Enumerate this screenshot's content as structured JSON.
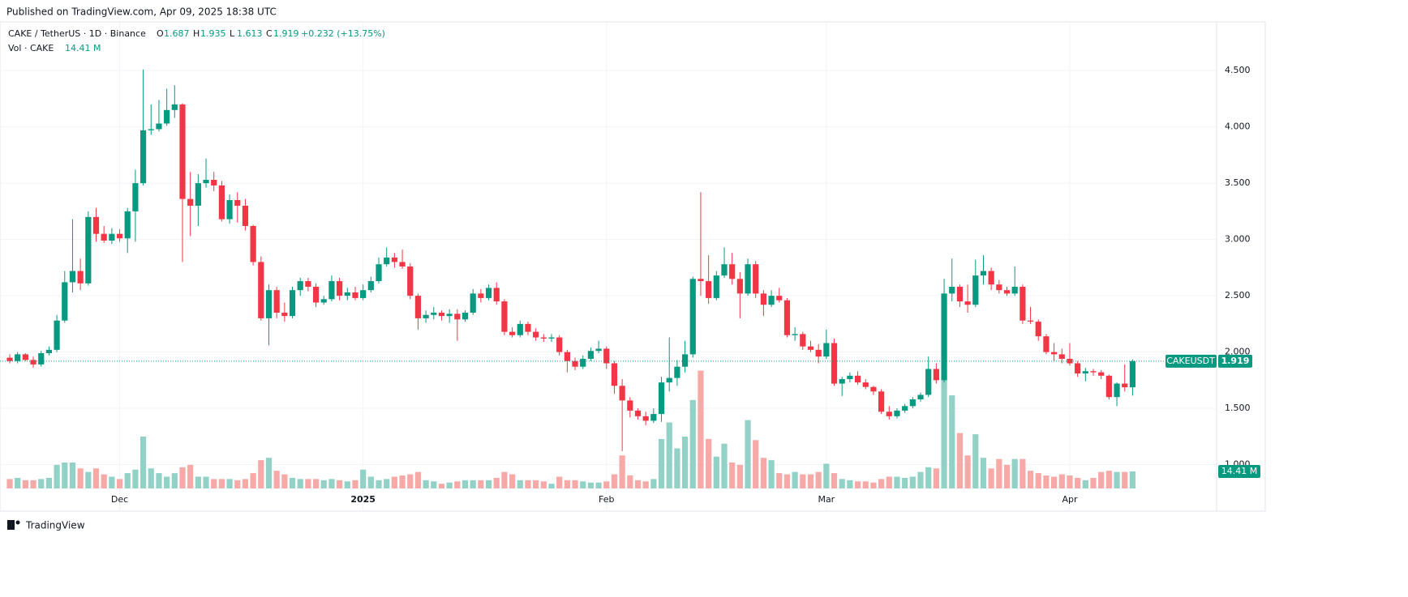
{
  "published": "Published on TradingView.com, Apr 09, 2025 18:38 UTC",
  "footer": "TradingView",
  "chart_data": {
    "type": "candlestick",
    "title": "CAKE / TetherUS · 1D · Binance",
    "ohlc_labels": [
      "O",
      "H",
      "L",
      "C"
    ],
    "change": "+0.232 (+13.75%)",
    "volume_title": "Vol · CAKE",
    "volume_value_label": "14.41 M",
    "symbol_label": "CAKEUSDT",
    "up_color": "#089981",
    "down_color": "#f23645",
    "up_volume_color": "#92d2c6",
    "down_volume_color": "#f7a9a7",
    "grid": true,
    "xlim": [
      -1.24,
      153.7
    ],
    "xticks": [
      {
        "value": 14,
        "label": "Dec"
      },
      {
        "value": 45,
        "label": "2025"
      },
      {
        "value": 76,
        "label": "Feb"
      },
      {
        "value": 104,
        "label": "Mar"
      },
      {
        "value": 135,
        "label": "Apr"
      }
    ],
    "ylim": [
      0.587,
      4.933
    ],
    "yticks": [
      {
        "value": 1.0,
        "label": "1.000"
      },
      {
        "value": 1.5,
        "label": "1.500"
      },
      {
        "value": 2.0,
        "label": "2.000"
      },
      {
        "value": 2.5,
        "label": "2.500"
      },
      {
        "value": 3.0,
        "label": "3.000"
      },
      {
        "value": 3.5,
        "label": "3.500"
      },
      {
        "value": 4.0,
        "label": "4.000"
      },
      {
        "value": 4.5,
        "label": "4.500"
      }
    ],
    "y2lim": [
      0,
      200
    ],
    "ohlc": [
      [
        1.95,
        1.98,
        1.9,
        1.92
      ],
      [
        1.92,
        2.0,
        1.9,
        1.98
      ],
      [
        1.98,
        1.99,
        1.92,
        1.93
      ],
      [
        1.93,
        1.96,
        1.86,
        1.89
      ],
      [
        1.89,
        2.01,
        1.87,
        1.99
      ],
      [
        1.99,
        2.05,
        1.97,
        2.02
      ],
      [
        2.02,
        2.33,
        2.0,
        2.28
      ],
      [
        2.28,
        2.72,
        2.26,
        2.62
      ],
      [
        2.62,
        3.18,
        2.53,
        2.72
      ],
      [
        2.72,
        2.83,
        2.55,
        2.61
      ],
      [
        2.61,
        3.25,
        2.59,
        3.2
      ],
      [
        3.2,
        3.28,
        2.98,
        3.05
      ],
      [
        3.05,
        3.12,
        2.97,
        2.99
      ],
      [
        2.99,
        3.1,
        2.96,
        3.05
      ],
      [
        3.05,
        3.09,
        2.98,
        3.01
      ],
      [
        3.01,
        3.28,
        2.88,
        3.25
      ],
      [
        3.25,
        3.62,
        2.98,
        3.5
      ],
      [
        3.5,
        4.51,
        3.48,
        3.97
      ],
      [
        3.97,
        4.2,
        3.93,
        3.98
      ],
      [
        3.98,
        4.24,
        3.96,
        4.03
      ],
      [
        4.03,
        4.34,
        4.01,
        4.15
      ],
      [
        4.15,
        4.37,
        4.08,
        4.2
      ],
      [
        4.2,
        4.21,
        2.8,
        3.36
      ],
      [
        3.36,
        3.6,
        3.03,
        3.3
      ],
      [
        3.3,
        3.58,
        3.12,
        3.5
      ],
      [
        3.5,
        3.72,
        3.46,
        3.53
      ],
      [
        3.53,
        3.6,
        3.43,
        3.48
      ],
      [
        3.48,
        3.52,
        3.16,
        3.18
      ],
      [
        3.18,
        3.4,
        3.14,
        3.35
      ],
      [
        3.35,
        3.42,
        3.15,
        3.3
      ],
      [
        3.3,
        3.36,
        3.08,
        3.12
      ],
      [
        3.12,
        3.13,
        2.77,
        2.8
      ],
      [
        2.8,
        2.85,
        2.28,
        2.3
      ],
      [
        2.3,
        2.6,
        2.06,
        2.55
      ],
      [
        2.55,
        2.58,
        2.3,
        2.35
      ],
      [
        2.35,
        2.44,
        2.27,
        2.32
      ],
      [
        2.32,
        2.58,
        2.3,
        2.55
      ],
      [
        2.55,
        2.66,
        2.5,
        2.63
      ],
      [
        2.63,
        2.66,
        2.54,
        2.58
      ],
      [
        2.58,
        2.61,
        2.4,
        2.44
      ],
      [
        2.44,
        2.5,
        2.42,
        2.47
      ],
      [
        2.47,
        2.68,
        2.45,
        2.63
      ],
      [
        2.63,
        2.66,
        2.46,
        2.5
      ],
      [
        2.5,
        2.57,
        2.46,
        2.53
      ],
      [
        2.53,
        2.58,
        2.46,
        2.48
      ],
      [
        2.48,
        2.6,
        2.46,
        2.55
      ],
      [
        2.55,
        2.67,
        2.53,
        2.63
      ],
      [
        2.63,
        2.84,
        2.61,
        2.78
      ],
      [
        2.78,
        2.93,
        2.76,
        2.84
      ],
      [
        2.84,
        2.88,
        2.75,
        2.8
      ],
      [
        2.8,
        2.91,
        2.74,
        2.76
      ],
      [
        2.76,
        2.79,
        2.47,
        2.5
      ],
      [
        2.5,
        2.52,
        2.2,
        2.3
      ],
      [
        2.3,
        2.37,
        2.26,
        2.33
      ],
      [
        2.33,
        2.4,
        2.29,
        2.35
      ],
      [
        2.35,
        2.37,
        2.28,
        2.32
      ],
      [
        2.32,
        2.38,
        2.26,
        2.34
      ],
      [
        2.34,
        2.38,
        2.1,
        2.29
      ],
      [
        2.29,
        2.37,
        2.27,
        2.35
      ],
      [
        2.35,
        2.56,
        2.33,
        2.52
      ],
      [
        2.52,
        2.56,
        2.44,
        2.48
      ],
      [
        2.48,
        2.6,
        2.46,
        2.57
      ],
      [
        2.57,
        2.62,
        2.42,
        2.45
      ],
      [
        2.45,
        2.47,
        2.15,
        2.18
      ],
      [
        2.18,
        2.22,
        2.13,
        2.15
      ],
      [
        2.15,
        2.28,
        2.13,
        2.25
      ],
      [
        2.25,
        2.27,
        2.15,
        2.18
      ],
      [
        2.18,
        2.21,
        2.1,
        2.13
      ],
      [
        2.13,
        2.16,
        2.09,
        2.12
      ],
      [
        2.12,
        2.16,
        2.09,
        2.13
      ],
      [
        2.13,
        2.15,
        1.97,
        2.0
      ],
      [
        2.0,
        2.02,
        1.82,
        1.92
      ],
      [
        1.92,
        1.95,
        1.84,
        1.87
      ],
      [
        1.87,
        1.97,
        1.85,
        1.94
      ],
      [
        1.94,
        2.04,
        1.92,
        2.01
      ],
      [
        2.01,
        2.1,
        1.99,
        2.03
      ],
      [
        2.03,
        2.05,
        1.85,
        1.9
      ],
      [
        1.9,
        1.92,
        1.63,
        1.7
      ],
      [
        1.7,
        1.76,
        1.12,
        1.57
      ],
      [
        1.57,
        1.6,
        1.42,
        1.48
      ],
      [
        1.48,
        1.5,
        1.4,
        1.43
      ],
      [
        1.43,
        1.47,
        1.35,
        1.39
      ],
      [
        1.39,
        1.5,
        1.37,
        1.45
      ],
      [
        1.45,
        1.78,
        1.38,
        1.73
      ],
      [
        1.73,
        2.13,
        1.65,
        1.77
      ],
      [
        1.77,
        1.93,
        1.7,
        1.87
      ],
      [
        1.87,
        2.1,
        1.82,
        1.98
      ],
      [
        1.98,
        2.67,
        1.95,
        2.65
      ],
      [
        2.65,
        3.42,
        2.5,
        2.63
      ],
      [
        2.63,
        2.86,
        2.43,
        2.48
      ],
      [
        2.48,
        2.72,
        2.46,
        2.68
      ],
      [
        2.68,
        2.93,
        2.66,
        2.78
      ],
      [
        2.78,
        2.88,
        2.6,
        2.65
      ],
      [
        2.65,
        2.71,
        2.3,
        2.52
      ],
      [
        2.52,
        2.83,
        2.5,
        2.78
      ],
      [
        2.78,
        2.81,
        2.48,
        2.52
      ],
      [
        2.52,
        2.55,
        2.32,
        2.42
      ],
      [
        2.42,
        2.55,
        2.4,
        2.5
      ],
      [
        2.5,
        2.57,
        2.44,
        2.46
      ],
      [
        2.46,
        2.48,
        2.13,
        2.15
      ],
      [
        2.15,
        2.22,
        2.1,
        2.16
      ],
      [
        2.16,
        2.18,
        2.02,
        2.05
      ],
      [
        2.05,
        2.1,
        2.0,
        2.02
      ],
      [
        2.02,
        2.07,
        1.9,
        1.96
      ],
      [
        1.96,
        2.2,
        1.94,
        2.08
      ],
      [
        2.08,
        2.12,
        1.7,
        1.72
      ],
      [
        1.72,
        1.78,
        1.61,
        1.76
      ],
      [
        1.76,
        1.82,
        1.73,
        1.79
      ],
      [
        1.79,
        1.83,
        1.71,
        1.73
      ],
      [
        1.73,
        1.76,
        1.67,
        1.69
      ],
      [
        1.69,
        1.7,
        1.62,
        1.65
      ],
      [
        1.65,
        1.67,
        1.45,
        1.47
      ],
      [
        1.47,
        1.52,
        1.4,
        1.43
      ],
      [
        1.43,
        1.5,
        1.41,
        1.48
      ],
      [
        1.48,
        1.54,
        1.46,
        1.52
      ],
      [
        1.52,
        1.6,
        1.5,
        1.58
      ],
      [
        1.58,
        1.64,
        1.56,
        1.62
      ],
      [
        1.62,
        1.96,
        1.6,
        1.85
      ],
      [
        1.85,
        1.9,
        1.72,
        1.75
      ],
      [
        1.75,
        2.65,
        1.73,
        2.52
      ],
      [
        2.52,
        2.83,
        2.45,
        2.58
      ],
      [
        2.58,
        2.6,
        2.4,
        2.45
      ],
      [
        2.45,
        2.6,
        2.35,
        2.42
      ],
      [
        2.42,
        2.82,
        2.4,
        2.68
      ],
      [
        2.68,
        2.86,
        2.6,
        2.72
      ],
      [
        2.72,
        2.75,
        2.55,
        2.6
      ],
      [
        2.6,
        2.64,
        2.52,
        2.55
      ],
      [
        2.55,
        2.58,
        2.5,
        2.52
      ],
      [
        2.52,
        2.76,
        2.5,
        2.58
      ],
      [
        2.58,
        2.6,
        2.25,
        2.28
      ],
      [
        2.28,
        2.4,
        2.25,
        2.27
      ],
      [
        2.27,
        2.29,
        2.1,
        2.14
      ],
      [
        2.14,
        2.16,
        1.98,
        2.0
      ],
      [
        2.0,
        2.08,
        1.92,
        1.98
      ],
      [
        1.98,
        2.03,
        1.9,
        1.94
      ],
      [
        1.94,
        2.08,
        1.88,
        1.9
      ],
      [
        1.9,
        1.92,
        1.78,
        1.81
      ],
      [
        1.81,
        1.86,
        1.74,
        1.83
      ],
      [
        1.83,
        1.85,
        1.79,
        1.82
      ],
      [
        1.82,
        1.84,
        1.76,
        1.79
      ],
      [
        1.79,
        1.8,
        1.58,
        1.6
      ],
      [
        1.6,
        1.73,
        1.52,
        1.72
      ],
      [
        1.72,
        1.89,
        1.65,
        1.687
      ],
      [
        1.687,
        1.935,
        1.613,
        1.919
      ]
    ],
    "volume": [
      8,
      9,
      7,
      7,
      8,
      9,
      20,
      22,
      22,
      17,
      14,
      17,
      12,
      10,
      8,
      13,
      16,
      44,
      17,
      13,
      10,
      13,
      18,
      20,
      10,
      10,
      8,
      8,
      8,
      7,
      8,
      13,
      24,
      26,
      15,
      12,
      9,
      8,
      8,
      8,
      7,
      8,
      7,
      6,
      7,
      16,
      10,
      7,
      8,
      10,
      11,
      12,
      14,
      7,
      6,
      4,
      5,
      6,
      7,
      7,
      7,
      7,
      9,
      14,
      12,
      7,
      7,
      7,
      6,
      4,
      10,
      7,
      7,
      6,
      5,
      5,
      6,
      12,
      28,
      11,
      7,
      6,
      8,
      42,
      56,
      34,
      44,
      75,
      100,
      42,
      27,
      38,
      22,
      20,
      58,
      41,
      26,
      24,
      13,
      12,
      14,
      12,
      12,
      14,
      21,
      13,
      8,
      7,
      6,
      6,
      5,
      8,
      10,
      10,
      9,
      10,
      14,
      18,
      17,
      96,
      79,
      47,
      28,
      46,
      26,
      17,
      25,
      20,
      25,
      25,
      15,
      13,
      11,
      10,
      12,
      11,
      9,
      7,
      9,
      14,
      15,
      14,
      14,
      14.41
    ]
  }
}
